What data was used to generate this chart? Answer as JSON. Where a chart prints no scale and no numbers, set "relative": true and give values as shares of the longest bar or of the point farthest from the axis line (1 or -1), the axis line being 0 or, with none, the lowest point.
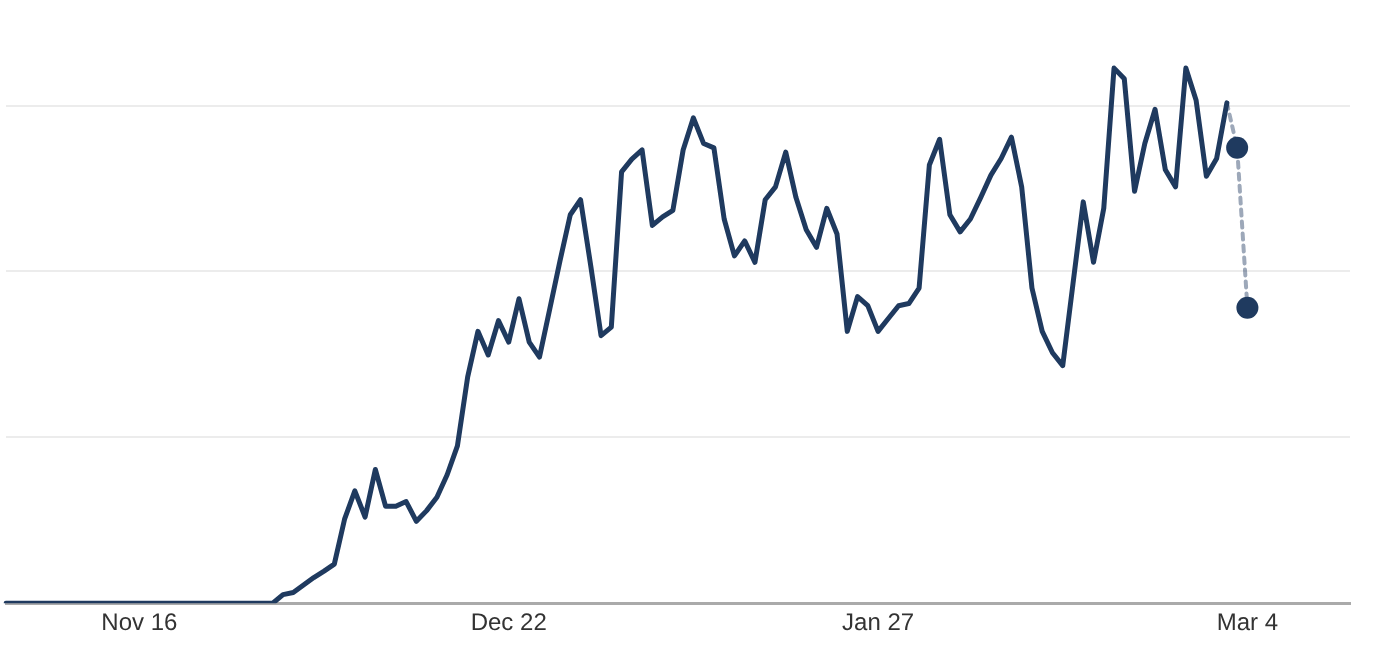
{
  "chart_data": {
    "type": "line",
    "relative": true,
    "grid": "y",
    "legend": false,
    "categories": [
      null,
      null,
      null,
      null,
      null,
      null,
      null,
      null,
      null,
      null,
      null,
      null,
      null,
      "Nov 16",
      null,
      null,
      null,
      null,
      null,
      null,
      null,
      null,
      null,
      null,
      null,
      null,
      null,
      null,
      null,
      null,
      null,
      null,
      null,
      null,
      null,
      null,
      null,
      null,
      null,
      null,
      null,
      null,
      null,
      null,
      null,
      null,
      null,
      null,
      null,
      "Dec 22",
      null,
      null,
      null,
      null,
      null,
      null,
      null,
      null,
      null,
      null,
      null,
      null,
      null,
      null,
      null,
      null,
      null,
      null,
      null,
      null,
      null,
      null,
      null,
      null,
      null,
      null,
      null,
      null,
      null,
      null,
      null,
      null,
      null,
      null,
      null,
      "Jan 27",
      null,
      null,
      null,
      null,
      null,
      null,
      null,
      null,
      null,
      null,
      null,
      null,
      null,
      null,
      null,
      null,
      null,
      null,
      null,
      null,
      null,
      null,
      null,
      null,
      null,
      null,
      null,
      null,
      null,
      null,
      null,
      null,
      null,
      null,
      null,
      "Mar 4",
      null,
      null,
      null,
      null,
      null,
      null,
      null,
      null,
      null,
      null
    ],
    "series": [
      {
        "color": "#1f3a5f",
        "line_style": "solid",
        "marker": "none",
        "values": [
          0,
          0,
          0,
          0,
          0,
          0,
          0,
          0,
          0,
          0,
          0,
          0,
          0,
          0,
          0,
          0,
          0,
          0,
          0,
          0,
          0,
          0,
          0,
          0,
          0,
          0,
          0,
          0.016,
          0.02,
          0.034,
          0.048,
          0.06,
          0.073,
          0.157,
          0.21,
          0.161,
          0.25,
          0.181,
          0.181,
          0.19,
          0.153,
          0.173,
          0.198,
          0.24,
          0.294,
          0.423,
          0.508,
          0.464,
          0.528,
          0.488,
          0.569,
          0.488,
          0.46,
          0.55,
          0.64,
          0.726,
          0.754,
          0.63,
          0.5,
          0.516,
          0.806,
          0.83,
          0.847,
          0.706,
          0.722,
          0.734,
          0.847,
          0.907,
          0.859,
          0.851,
          0.718,
          0.649,
          0.677,
          0.637,
          0.754,
          0.778,
          0.843,
          0.758,
          0.698,
          0.665,
          0.738,
          0.69,
          0.508,
          0.573,
          0.556,
          0.508,
          0.532,
          0.556,
          0.56,
          0.589,
          0.819,
          0.867,
          0.726,
          0.694,
          0.718,
          0.758,
          0.8,
          0.831,
          0.871,
          0.778,
          0.589,
          0.508,
          0.468,
          0.444,
          0.597,
          0.75,
          0.637,
          0.738,
          1,
          0.98,
          0.77,
          0.859,
          0.923,
          0.81,
          0.778,
          1,
          0.94,
          0.798,
          0.831,
          0.935,
          null,
          null,
          null,
          null,
          null,
          null,
          null,
          null,
          null,
          null,
          null,
          null
        ]
      },
      {
        "color": "#1f3a5f",
        "line_style": "dotted",
        "marker": "circle",
        "values": [
          null,
          null,
          null,
          null,
          null,
          null,
          null,
          null,
          null,
          null,
          null,
          null,
          null,
          null,
          null,
          null,
          null,
          null,
          null,
          null,
          null,
          null,
          null,
          null,
          null,
          null,
          null,
          null,
          null,
          null,
          null,
          null,
          null,
          null,
          null,
          null,
          null,
          null,
          null,
          null,
          null,
          null,
          null,
          null,
          null,
          null,
          null,
          null,
          null,
          null,
          null,
          null,
          null,
          null,
          null,
          null,
          null,
          null,
          null,
          null,
          null,
          null,
          null,
          null,
          null,
          null,
          null,
          null,
          null,
          null,
          null,
          null,
          null,
          null,
          null,
          null,
          null,
          null,
          null,
          null,
          null,
          null,
          null,
          null,
          null,
          null,
          null,
          null,
          null,
          null,
          null,
          null,
          null,
          null,
          null,
          null,
          null,
          null,
          null,
          null,
          null,
          null,
          null,
          null,
          null,
          null,
          null,
          null,
          null,
          null,
          null,
          null,
          null,
          null,
          null,
          null,
          null,
          null,
          null,
          0.935,
          0.851,
          0.552,
          null,
          null,
          null,
          null,
          null,
          null,
          null,
          null,
          null,
          null
        ]
      }
    ]
  }
}
